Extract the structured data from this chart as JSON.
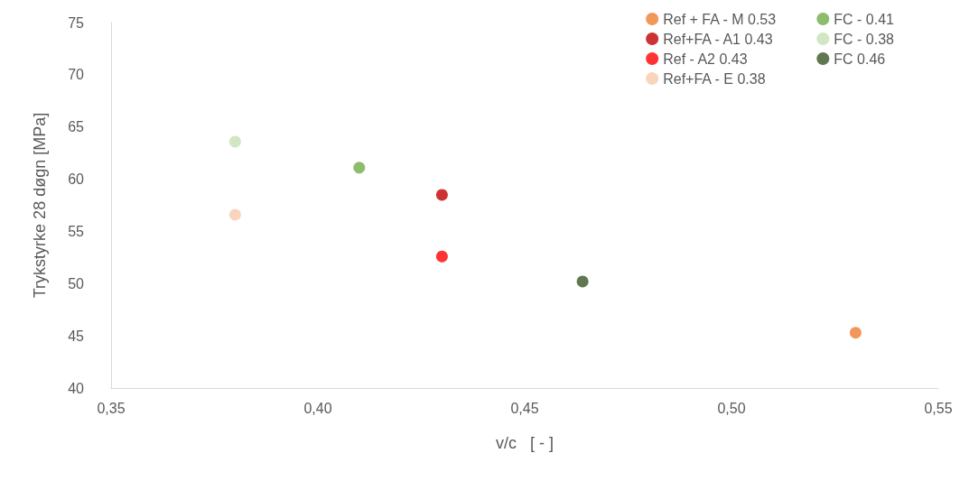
{
  "chart_data": {
    "type": "scatter",
    "xlabel": "v/c   [ - ]",
    "ylabel": "Trykstyrke 28 døgn [MPa]",
    "xlim": [
      0.35,
      0.55
    ],
    "xticks": [
      {
        "value": 0.35,
        "label": "0,35"
      },
      {
        "value": 0.4,
        "label": "0,40"
      },
      {
        "value": 0.45,
        "label": "0,45"
      },
      {
        "value": 0.5,
        "label": "0,50"
      },
      {
        "value": 0.55,
        "label": "0,55"
      }
    ],
    "ylim": [
      40,
      75
    ],
    "yticks": [
      40,
      45,
      50,
      55,
      60,
      65,
      70,
      75
    ],
    "grid": false,
    "legend": "top right",
    "marker": "circle",
    "series": [
      {
        "name": "Ref + FA - M 0.53",
        "color": "#ed7d31",
        "x": [
          0.53
        ],
        "values": [
          45.3
        ]
      },
      {
        "name": "Ref+FA - A1 0.43",
        "color": "#c00000",
        "x": [
          0.43
        ],
        "values": [
          58.5
        ]
      },
      {
        "name": "Ref - A2 0.43",
        "color": "#ff0000",
        "x": [
          0.43
        ],
        "values": [
          52.6
        ]
      },
      {
        "name": "Ref+FA - E 0.38",
        "color": "#f8cbad",
        "x": [
          0.38
        ],
        "values": [
          56.6
        ]
      },
      {
        "name": "FC - 0.41",
        "color": "#70ad47",
        "x": [
          0.41
        ],
        "values": [
          61.1
        ]
      },
      {
        "name": "FC - 0.38",
        "color": "#c5e0b4",
        "x": [
          0.38
        ],
        "values": [
          63.6
        ]
      },
      {
        "name": "FC 0.46",
        "color": "#375623",
        "x": [
          0.464
        ],
        "values": [
          50.2
        ]
      }
    ]
  }
}
